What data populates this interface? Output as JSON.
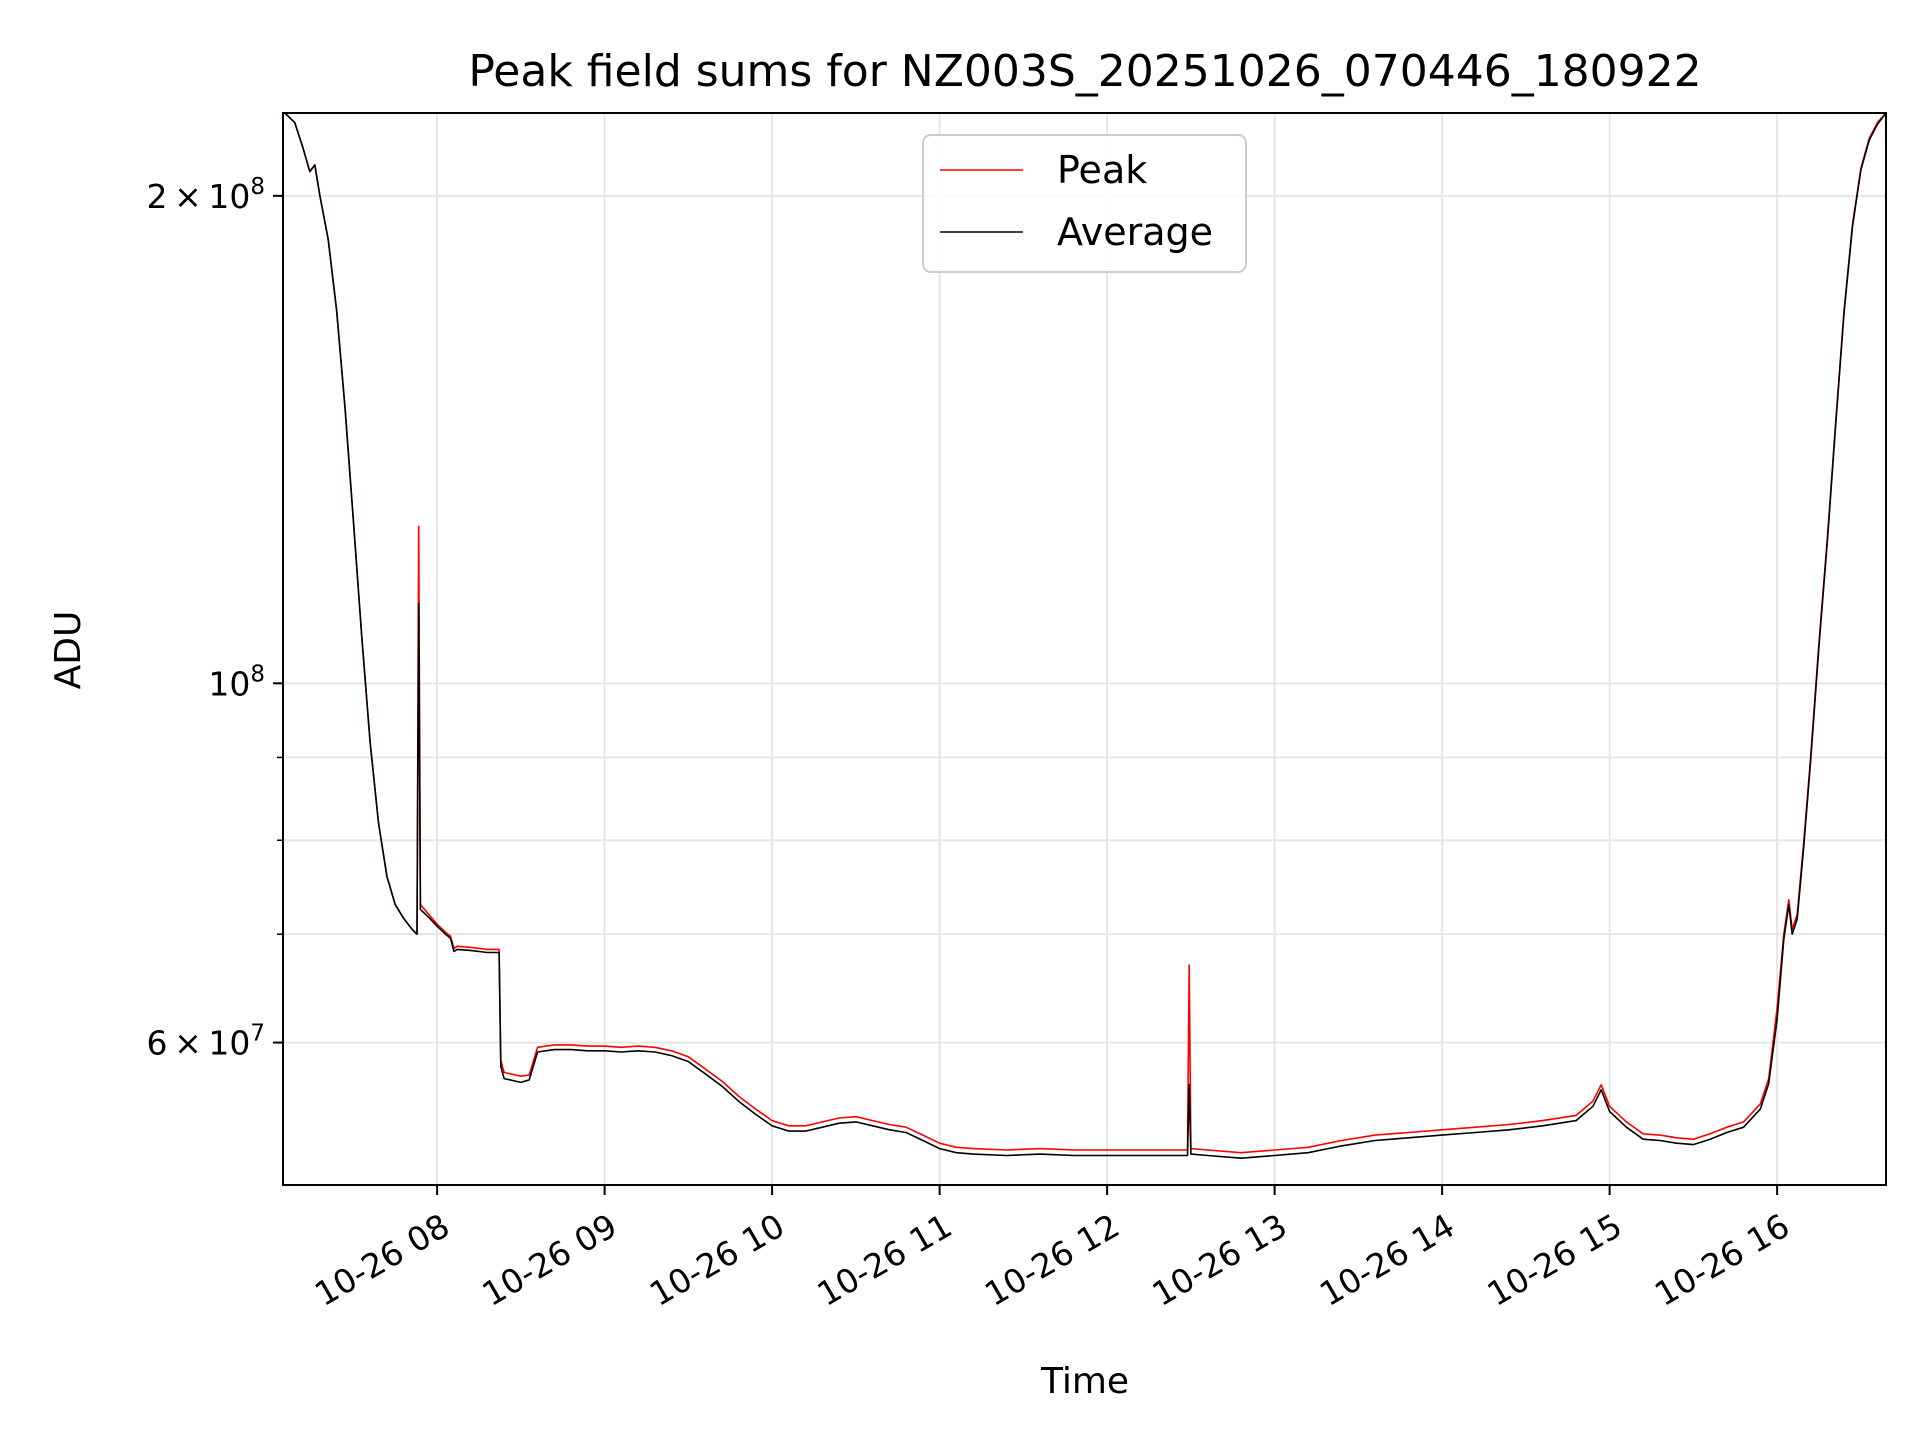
{
  "chart_data": {
    "type": "line",
    "title": "Peak field sums for NZ003S_20251026_070446_180922",
    "xlabel": "Time",
    "ylabel": "ADU",
    "yscale": "log",
    "grid": true,
    "legend_position": "top-center",
    "xlim": [
      7.08,
      16.65
    ],
    "ylim": [
      49000000,
      225000000
    ],
    "x_unit": "hours of day (2025-10-26)",
    "x_ticks": [
      8,
      9,
      10,
      11,
      12,
      13,
      14,
      15,
      16
    ],
    "x_tick_labels": [
      "10-26 08",
      "10-26 09",
      "10-26 10",
      "10-26 11",
      "10-26 12",
      "10-26 13",
      "10-26 14",
      "10-26 15",
      "10-26 16"
    ],
    "y_ticks": [
      {
        "value": 200000000,
        "mantissa": "2",
        "exponent": "8"
      },
      {
        "value": 100000000,
        "mantissa": "",
        "exponent": "8"
      },
      {
        "value": 60000000,
        "mantissa": "6",
        "exponent": "7"
      }
    ],
    "y_minor_ticks": [
      70000000,
      80000000,
      90000000
    ],
    "series": [
      {
        "name": "Peak",
        "color": "#ff0000",
        "points": [
          [
            7.09,
            225000000
          ],
          [
            7.15,
            222000000
          ],
          [
            7.2,
            214000000
          ],
          [
            7.24,
            207000000
          ],
          [
            7.27,
            209000000
          ],
          [
            7.3,
            200000000
          ],
          [
            7.35,
            188000000
          ],
          [
            7.4,
            170000000
          ],
          [
            7.45,
            148000000
          ],
          [
            7.5,
            126000000
          ],
          [
            7.55,
            107000000
          ],
          [
            7.6,
            92000000
          ],
          [
            7.65,
            82000000
          ],
          [
            7.7,
            76000000
          ],
          [
            7.75,
            73000000
          ],
          [
            7.8,
            71600000
          ],
          [
            7.85,
            70500000
          ],
          [
            7.88,
            70000000
          ],
          [
            7.89,
            125000000
          ],
          [
            7.9,
            73000000
          ],
          [
            7.95,
            72000000
          ],
          [
            8.0,
            71000000
          ],
          [
            8.05,
            70200000
          ],
          [
            8.08,
            69800000
          ],
          [
            8.1,
            68600000
          ],
          [
            8.12,
            68800000
          ],
          [
            8.2,
            68700000
          ],
          [
            8.3,
            68500000
          ],
          [
            8.37,
            68500000
          ],
          [
            8.38,
            58500000
          ],
          [
            8.4,
            57500000
          ],
          [
            8.5,
            57200000
          ],
          [
            8.55,
            57300000
          ],
          [
            8.6,
            59600000
          ],
          [
            8.7,
            59800000
          ],
          [
            8.8,
            59800000
          ],
          [
            8.9,
            59700000
          ],
          [
            9.0,
            59700000
          ],
          [
            9.1,
            59600000
          ],
          [
            9.2,
            59700000
          ],
          [
            9.3,
            59600000
          ],
          [
            9.4,
            59300000
          ],
          [
            9.5,
            58800000
          ],
          [
            9.6,
            57800000
          ],
          [
            9.7,
            56800000
          ],
          [
            9.8,
            55600000
          ],
          [
            9.9,
            54600000
          ],
          [
            10.0,
            53700000
          ],
          [
            10.1,
            53300000
          ],
          [
            10.2,
            53300000
          ],
          [
            10.3,
            53600000
          ],
          [
            10.4,
            53900000
          ],
          [
            10.5,
            54000000
          ],
          [
            10.6,
            53700000
          ],
          [
            10.7,
            53400000
          ],
          [
            10.8,
            53200000
          ],
          [
            10.9,
            52600000
          ],
          [
            11.0,
            52000000
          ],
          [
            11.1,
            51700000
          ],
          [
            11.2,
            51600000
          ],
          [
            11.4,
            51500000
          ],
          [
            11.6,
            51600000
          ],
          [
            11.8,
            51500000
          ],
          [
            12.0,
            51500000
          ],
          [
            12.2,
            51500000
          ],
          [
            12.4,
            51500000
          ],
          [
            12.48,
            51500000
          ],
          [
            12.49,
            67000000
          ],
          [
            12.5,
            51600000
          ],
          [
            12.6,
            51500000
          ],
          [
            12.8,
            51300000
          ],
          [
            13.0,
            51500000
          ],
          [
            13.2,
            51700000
          ],
          [
            13.4,
            52200000
          ],
          [
            13.6,
            52600000
          ],
          [
            13.8,
            52800000
          ],
          [
            14.0,
            53000000
          ],
          [
            14.2,
            53200000
          ],
          [
            14.4,
            53400000
          ],
          [
            14.6,
            53700000
          ],
          [
            14.8,
            54100000
          ],
          [
            14.9,
            55200000
          ],
          [
            14.95,
            56500000
          ],
          [
            15.0,
            54800000
          ],
          [
            15.1,
            53600000
          ],
          [
            15.2,
            52700000
          ],
          [
            15.3,
            52600000
          ],
          [
            15.4,
            52400000
          ],
          [
            15.5,
            52300000
          ],
          [
            15.6,
            52700000
          ],
          [
            15.7,
            53200000
          ],
          [
            15.8,
            53600000
          ],
          [
            15.9,
            55000000
          ],
          [
            15.95,
            57000000
          ],
          [
            16.0,
            63000000
          ],
          [
            16.04,
            70000000
          ],
          [
            16.07,
            73500000
          ],
          [
            16.09,
            70500000
          ],
          [
            16.12,
            72000000
          ],
          [
            16.16,
            80000000
          ],
          [
            16.2,
            90000000
          ],
          [
            16.25,
            106000000
          ],
          [
            16.3,
            123000000
          ],
          [
            16.35,
            145000000
          ],
          [
            16.4,
            170000000
          ],
          [
            16.45,
            192000000
          ],
          [
            16.5,
            208000000
          ],
          [
            16.55,
            217000000
          ],
          [
            16.6,
            222000000
          ],
          [
            16.65,
            225000000
          ]
        ]
      },
      {
        "name": "Average",
        "color": "#000000",
        "points": [
          [
            7.09,
            225000000
          ],
          [
            7.15,
            222000000
          ],
          [
            7.2,
            214000000
          ],
          [
            7.24,
            207000000
          ],
          [
            7.27,
            209000000
          ],
          [
            7.3,
            200000000
          ],
          [
            7.35,
            188000000
          ],
          [
            7.4,
            170000000
          ],
          [
            7.45,
            148000000
          ],
          [
            7.5,
            126000000
          ],
          [
            7.55,
            107000000
          ],
          [
            7.6,
            92000000
          ],
          [
            7.65,
            82000000
          ],
          [
            7.7,
            76000000
          ],
          [
            7.75,
            73000000
          ],
          [
            7.8,
            71600000
          ],
          [
            7.85,
            70500000
          ],
          [
            7.88,
            70000000
          ],
          [
            7.89,
            112000000
          ],
          [
            7.9,
            72500000
          ],
          [
            7.95,
            71700000
          ],
          [
            8.0,
            70800000
          ],
          [
            8.05,
            70000000
          ],
          [
            8.08,
            69600000
          ],
          [
            8.1,
            68300000
          ],
          [
            8.12,
            68500000
          ],
          [
            8.2,
            68400000
          ],
          [
            8.3,
            68200000
          ],
          [
            8.37,
            68200000
          ],
          [
            8.38,
            58000000
          ],
          [
            8.4,
            57000000
          ],
          [
            8.5,
            56700000
          ],
          [
            8.55,
            56900000
          ],
          [
            8.6,
            59200000
          ],
          [
            8.7,
            59400000
          ],
          [
            8.8,
            59400000
          ],
          [
            8.9,
            59300000
          ],
          [
            9.0,
            59300000
          ],
          [
            9.1,
            59200000
          ],
          [
            9.2,
            59300000
          ],
          [
            9.3,
            59200000
          ],
          [
            9.4,
            58900000
          ],
          [
            9.5,
            58400000
          ],
          [
            9.6,
            57400000
          ],
          [
            9.7,
            56400000
          ],
          [
            9.8,
            55200000
          ],
          [
            9.9,
            54200000
          ],
          [
            10.0,
            53300000
          ],
          [
            10.1,
            52900000
          ],
          [
            10.2,
            52900000
          ],
          [
            10.3,
            53200000
          ],
          [
            10.4,
            53500000
          ],
          [
            10.5,
            53600000
          ],
          [
            10.6,
            53300000
          ],
          [
            10.7,
            53000000
          ],
          [
            10.8,
            52800000
          ],
          [
            10.9,
            52200000
          ],
          [
            11.0,
            51600000
          ],
          [
            11.1,
            51300000
          ],
          [
            11.2,
            51200000
          ],
          [
            11.4,
            51100000
          ],
          [
            11.6,
            51200000
          ],
          [
            11.8,
            51100000
          ],
          [
            12.0,
            51100000
          ],
          [
            12.2,
            51100000
          ],
          [
            12.4,
            51100000
          ],
          [
            12.48,
            51100000
          ],
          [
            12.49,
            56500000
          ],
          [
            12.5,
            51200000
          ],
          [
            12.6,
            51100000
          ],
          [
            12.8,
            50900000
          ],
          [
            13.0,
            51100000
          ],
          [
            13.2,
            51300000
          ],
          [
            13.4,
            51800000
          ],
          [
            13.6,
            52200000
          ],
          [
            13.8,
            52400000
          ],
          [
            14.0,
            52600000
          ],
          [
            14.2,
            52800000
          ],
          [
            14.4,
            53000000
          ],
          [
            14.6,
            53300000
          ],
          [
            14.8,
            53700000
          ],
          [
            14.9,
            54800000
          ],
          [
            14.95,
            56100000
          ],
          [
            15.0,
            54400000
          ],
          [
            15.1,
            53200000
          ],
          [
            15.2,
            52300000
          ],
          [
            15.3,
            52200000
          ],
          [
            15.4,
            52000000
          ],
          [
            15.5,
            51900000
          ],
          [
            15.6,
            52300000
          ],
          [
            15.7,
            52800000
          ],
          [
            15.8,
            53200000
          ],
          [
            15.9,
            54600000
          ],
          [
            15.95,
            56600000
          ],
          [
            16.0,
            62000000
          ],
          [
            16.04,
            69500000
          ],
          [
            16.07,
            73000000
          ],
          [
            16.09,
            70000000
          ],
          [
            16.12,
            71500000
          ],
          [
            16.16,
            79500000
          ],
          [
            16.2,
            89500000
          ],
          [
            16.25,
            105500000
          ],
          [
            16.3,
            122500000
          ],
          [
            16.35,
            144500000
          ],
          [
            16.4,
            169500000
          ],
          [
            16.45,
            191500000
          ],
          [
            16.5,
            207500000
          ],
          [
            16.55,
            216500000
          ],
          [
            16.6,
            221500000
          ],
          [
            16.65,
            225000000
          ]
        ]
      }
    ]
  }
}
